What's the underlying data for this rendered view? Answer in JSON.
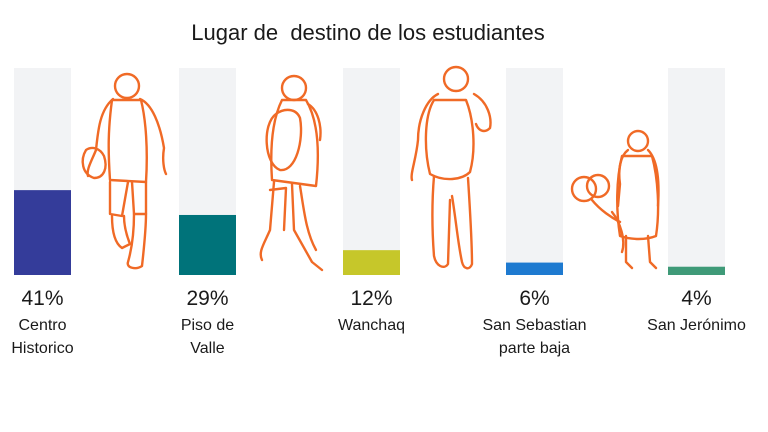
{
  "chart_data": {
    "type": "bar",
    "title": "Lugar de  destino de los estudiantes",
    "ylim": [
      0,
      100
    ],
    "grid": false,
    "legend": "none",
    "categories": [
      [
        "Centro",
        "Historico"
      ],
      [
        "Piso de",
        "Valle"
      ],
      [
        "Wanchaq"
      ],
      [
        "San Sebastian",
        "parte baja"
      ],
      [
        "San Jerónimo"
      ]
    ],
    "values": [
      41,
      29,
      12,
      6,
      4
    ],
    "value_labels": [
      "41%",
      "29%",
      "12%",
      "6%",
      "4%"
    ],
    "colors": [
      "#343c9a",
      "#00737a",
      "#c6c72a",
      "#1e7ad0",
      "#3f9a78"
    ],
    "track_color": "#f2f3f5",
    "figure_color": "#f06a26",
    "figures": [
      "student-walking-icon",
      "student-backpack-walking-icon",
      "student-backpack-icon",
      "child-with-balloons-icon"
    ]
  }
}
